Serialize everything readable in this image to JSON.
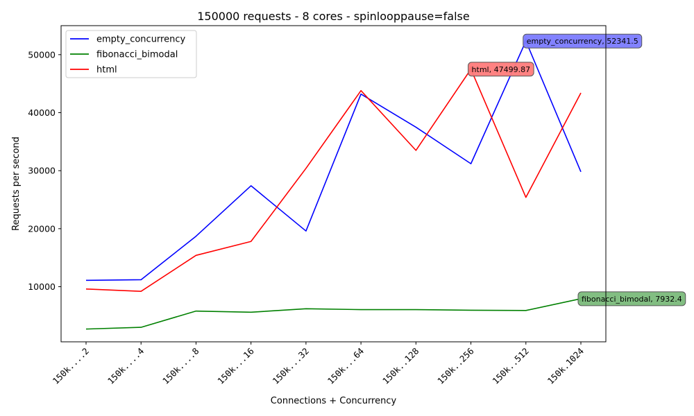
{
  "chart_data": {
    "type": "line",
    "title": "150000 requests - 8 cores - spinlooppause=false",
    "xlabel": "Connections + Concurrency",
    "ylabel": "Requests per second",
    "categories": [
      "150k....2",
      "150k....4",
      "150k....8",
      "150k...16",
      "150k...32",
      "150k...64",
      "150k..128",
      "150k..256",
      "150k..512",
      "150k.1024"
    ],
    "ylim": [
      500,
      55000
    ],
    "yticks": [
      10000,
      20000,
      30000,
      40000,
      50000
    ],
    "grid": false,
    "legend_position": "upper-left",
    "series": [
      {
        "name": "empty_concurrency",
        "color": "#0000ff",
        "values": [
          11100,
          11200,
          18700,
          27400,
          19600,
          43200,
          37500,
          31200,
          52341.5,
          29800
        ],
        "annotation": {
          "index": 8,
          "text": "empty_concurrency, 52341.5",
          "box_color": "#7b7bff"
        }
      },
      {
        "name": "fibonacci_bimodal",
        "color": "#008000",
        "values": [
          2700,
          3000,
          5800,
          5600,
          6200,
          6050,
          6050,
          5950,
          5900,
          7932.4
        ],
        "annotation": {
          "index": 9,
          "text": "fibonacci_bimodal, 7932.4",
          "box_color": "#7bbb7b"
        }
      },
      {
        "name": "html",
        "color": "#ff0000",
        "values": [
          9600,
          9200,
          15400,
          17800,
          30400,
          43800,
          33500,
          47499.87,
          25400,
          43400
        ],
        "annotation": {
          "index": 7,
          "text": "html, 47499.87",
          "box_color": "#ff7b7b"
        }
      }
    ]
  }
}
